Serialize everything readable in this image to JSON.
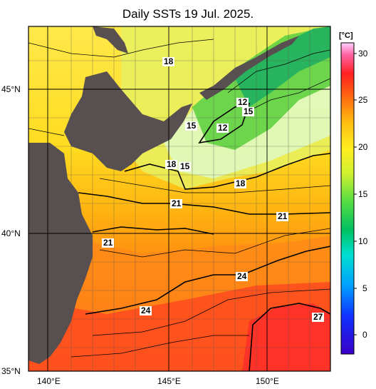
{
  "title": "Daily SSTs 19 Jul. 2025.",
  "lat_labels": [
    "45°N",
    "40°N",
    "35°N"
  ],
  "lon_labels": [
    "140°E",
    "145°E",
    "150°E"
  ],
  "colorbar": {
    "unit": "[°C]",
    "ticks": [
      "30",
      "25",
      "20",
      "15",
      "10",
      "5",
      "0"
    ],
    "range": [
      -2,
      32
    ]
  },
  "isotherm_labels": [
    "18",
    "12",
    "15",
    "15",
    "12",
    "18",
    "15",
    "18",
    "21",
    "21",
    "21",
    "24",
    "24",
    "27"
  ],
  "colors": {
    "land": "#585050",
    "warm": "#ff3a1e",
    "mid": "#ffaa10",
    "cool": "#ffe620",
    "cold": "#40d040",
    "contour": "#000000"
  }
}
